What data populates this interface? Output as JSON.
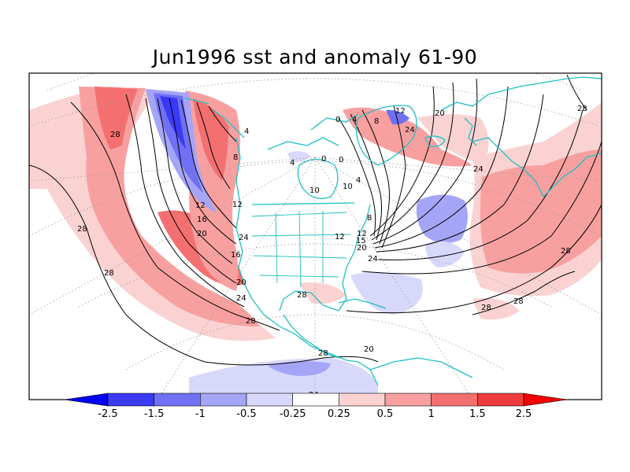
{
  "title": "Jun1996 sst and anomaly 61-90",
  "colors": {
    "coastline": "#20c0c0",
    "contour": "#000000",
    "graticule": "#9a9a9a",
    "frame": "#000000"
  },
  "colorbar": {
    "bins": [
      {
        "color": "#0000f0"
      },
      {
        "color": "#3a3af5"
      },
      {
        "color": "#7070f5"
      },
      {
        "color": "#a5a5f8"
      },
      {
        "color": "#d8d8fb"
      },
      {
        "color": "#ffffff"
      },
      {
        "color": "#fbd2d2"
      },
      {
        "color": "#f8a0a0"
      },
      {
        "color": "#f47070"
      },
      {
        "color": "#f03c3c"
      },
      {
        "color": "#f00000"
      }
    ],
    "tick_labels": [
      "-2.5",
      "-1.5",
      "-1",
      "-0.5",
      "-0.25",
      "0.25",
      "0.5",
      "1",
      "1.5",
      "2.5"
    ]
  },
  "contour_labels": [
    "28",
    "24",
    "20",
    "16",
    "12",
    "8",
    "4",
    "0",
    "10",
    "28",
    "24",
    "20",
    "15",
    "12",
    "8",
    "4",
    "0",
    "4",
    "8",
    "12",
    "20",
    "24",
    "28",
    "28",
    "28",
    "28",
    "24",
    "28",
    "12",
    "16",
    "20",
    "24",
    "28",
    "28",
    "28",
    "0",
    "4",
    "10",
    "12",
    "20",
    "24"
  ]
}
